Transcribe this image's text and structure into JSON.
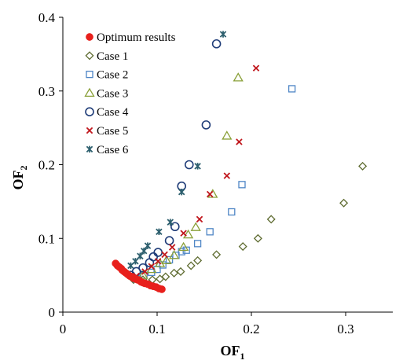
{
  "chart_data": {
    "type": "scatter",
    "xlabel": "OF",
    "xlabel_sub": "1",
    "ylabel": "OF",
    "ylabel_sub": "2",
    "xlim": [
      0,
      0.35
    ],
    "ylim": [
      0,
      0.4
    ],
    "x_ticks": [
      0,
      0.1,
      0.2,
      0.3
    ],
    "x_tick_labels": [
      "0",
      "0.1",
      "0.2",
      "0.3"
    ],
    "y_ticks": [
      0,
      0.1,
      0.2,
      0.3,
      0.4
    ],
    "y_tick_labels": [
      "0",
      "0.1",
      "0.2",
      "0.3",
      "0.4"
    ],
    "grid": false,
    "legend_position": "top-left",
    "series": [
      {
        "name": "Optimum results",
        "marker": "filled-circle",
        "color": "#e8201c",
        "points": [
          [
            0.056,
            0.066
          ],
          [
            0.058,
            0.063
          ],
          [
            0.06,
            0.061
          ],
          [
            0.062,
            0.059
          ],
          [
            0.063,
            0.057
          ],
          [
            0.065,
            0.055
          ],
          [
            0.067,
            0.053
          ],
          [
            0.069,
            0.051
          ],
          [
            0.071,
            0.049
          ],
          [
            0.073,
            0.048
          ],
          [
            0.075,
            0.046
          ],
          [
            0.077,
            0.045
          ],
          [
            0.079,
            0.044
          ],
          [
            0.081,
            0.043
          ],
          [
            0.083,
            0.041
          ],
          [
            0.085,
            0.04
          ],
          [
            0.087,
            0.039
          ],
          [
            0.09,
            0.038
          ],
          [
            0.093,
            0.036
          ],
          [
            0.096,
            0.035
          ],
          [
            0.099,
            0.034
          ],
          [
            0.102,
            0.032
          ],
          [
            0.105,
            0.031
          ]
        ]
      },
      {
        "name": "Case 1",
        "marker": "diamond",
        "color": "#5e6b30",
        "points": [
          [
            0.075,
            0.044
          ],
          [
            0.085,
            0.044
          ],
          [
            0.095,
            0.044
          ],
          [
            0.103,
            0.045
          ],
          [
            0.109,
            0.048
          ],
          [
            0.118,
            0.053
          ],
          [
            0.125,
            0.055
          ],
          [
            0.136,
            0.063
          ],
          [
            0.143,
            0.07
          ],
          [
            0.163,
            0.078
          ],
          [
            0.191,
            0.089
          ],
          [
            0.207,
            0.1
          ],
          [
            0.221,
            0.126
          ],
          [
            0.298,
            0.148
          ],
          [
            0.318,
            0.198
          ]
        ]
      },
      {
        "name": "Case 2",
        "marker": "square",
        "color": "#4f86c6",
        "points": [
          [
            0.078,
            0.045
          ],
          [
            0.086,
            0.05
          ],
          [
            0.094,
            0.054
          ],
          [
            0.1,
            0.058
          ],
          [
            0.106,
            0.064
          ],
          [
            0.113,
            0.071
          ],
          [
            0.12,
            0.077
          ],
          [
            0.126,
            0.082
          ],
          [
            0.131,
            0.084
          ],
          [
            0.143,
            0.093
          ],
          [
            0.156,
            0.109
          ],
          [
            0.179,
            0.136
          ],
          [
            0.19,
            0.173
          ],
          [
            0.243,
            0.303
          ]
        ]
      },
      {
        "name": "Case 3",
        "marker": "triangle",
        "color": "#8aa039",
        "points": [
          [
            0.085,
            0.05
          ],
          [
            0.094,
            0.058
          ],
          [
            0.103,
            0.066
          ],
          [
            0.11,
            0.07
          ],
          [
            0.118,
            0.077
          ],
          [
            0.128,
            0.088
          ],
          [
            0.133,
            0.105
          ],
          [
            0.141,
            0.115
          ],
          [
            0.159,
            0.16
          ],
          [
            0.174,
            0.239
          ],
          [
            0.186,
            0.318
          ]
        ]
      },
      {
        "name": "Case 4",
        "marker": "open-circle",
        "color": "#1f3c78",
        "points": [
          [
            0.072,
            0.05
          ],
          [
            0.078,
            0.055
          ],
          [
            0.085,
            0.06
          ],
          [
            0.092,
            0.067
          ],
          [
            0.096,
            0.075
          ],
          [
            0.101,
            0.081
          ],
          [
            0.113,
            0.097
          ],
          [
            0.119,
            0.116
          ],
          [
            0.126,
            0.171
          ],
          [
            0.134,
            0.2
          ],
          [
            0.152,
            0.254
          ],
          [
            0.163,
            0.364
          ]
        ]
      },
      {
        "name": "Case 5",
        "marker": "x",
        "color": "#c0161c",
        "points": [
          [
            0.078,
            0.049
          ],
          [
            0.087,
            0.055
          ],
          [
            0.094,
            0.062
          ],
          [
            0.101,
            0.069
          ],
          [
            0.108,
            0.078
          ],
          [
            0.116,
            0.088
          ],
          [
            0.128,
            0.107
          ],
          [
            0.145,
            0.126
          ],
          [
            0.156,
            0.16
          ],
          [
            0.174,
            0.185
          ],
          [
            0.187,
            0.231
          ],
          [
            0.205,
            0.331
          ]
        ]
      },
      {
        "name": "Case 6",
        "marker": "asterisk",
        "color": "#2d5f6e",
        "points": [
          [
            0.072,
            0.063
          ],
          [
            0.077,
            0.069
          ],
          [
            0.082,
            0.076
          ],
          [
            0.086,
            0.083
          ],
          [
            0.09,
            0.09
          ],
          [
            0.102,
            0.109
          ],
          [
            0.114,
            0.122
          ],
          [
            0.126,
            0.163
          ],
          [
            0.143,
            0.198
          ],
          [
            0.17,
            0.377
          ]
        ]
      }
    ]
  }
}
